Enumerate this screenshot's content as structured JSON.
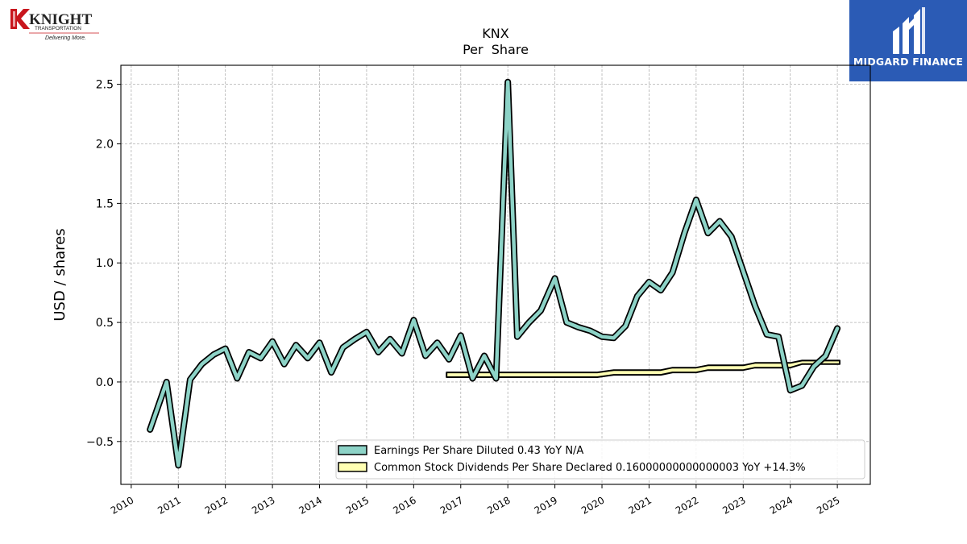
{
  "branding": {
    "company_logo_text": "KNIGHT",
    "company_logo_sub": "TRANSPORTATION",
    "company_tagline": "Delivering More.",
    "brand_name": "MIDGARD FINANCE",
    "brand_color": "#2b5bb5"
  },
  "chart_data": {
    "type": "line",
    "title": "KNX",
    "subtitle": "Per  Share",
    "ylabel": "USD / shares",
    "xlabel": "",
    "xlim": [
      2009.78,
      2025.7
    ],
    "ylim": [
      -0.86,
      2.66
    ],
    "yticks": [
      -0.5,
      0.0,
      0.5,
      1.0,
      1.5,
      2.0,
      2.5
    ],
    "ytick_labels": [
      "−0.5",
      "0.0",
      "0.5",
      "1.0",
      "1.5",
      "2.0",
      "2.5"
    ],
    "xticks": [
      2010,
      2011,
      2012,
      2013,
      2014,
      2015,
      2016,
      2017,
      2018,
      2019,
      2020,
      2021,
      2022,
      2023,
      2024,
      2025
    ],
    "xtick_labels": [
      "2010",
      "2011",
      "2012",
      "2013",
      "2014",
      "2015",
      "2016",
      "2017",
      "2018",
      "2019",
      "2020",
      "2021",
      "2022",
      "2023",
      "2024",
      "2025"
    ],
    "grid": true,
    "legend_position": "lower-right",
    "series": [
      {
        "name": "Earnings Per Share Diluted  0.43 YoY N/A",
        "color": "#8dd3c7",
        "x": [
          2010.4,
          2010.75,
          2011.0,
          2011.25,
          2011.5,
          2011.75,
          2012.0,
          2012.25,
          2012.5,
          2012.75,
          2013.0,
          2013.25,
          2013.5,
          2013.75,
          2014.0,
          2014.25,
          2014.5,
          2014.75,
          2015.0,
          2015.25,
          2015.5,
          2015.75,
          2016.0,
          2016.25,
          2016.5,
          2016.75,
          2017.0,
          2017.25,
          2017.5,
          2017.75,
          2018.0,
          2018.2,
          2018.45,
          2018.7,
          2019.0,
          2019.25,
          2019.5,
          2019.75,
          2020.0,
          2020.25,
          2020.5,
          2020.75,
          2021.0,
          2021.25,
          2021.5,
          2021.75,
          2022.0,
          2022.25,
          2022.5,
          2022.75,
          2023.0,
          2023.25,
          2023.5,
          2023.75,
          2024.0,
          2024.25,
          2024.5,
          2024.75,
          2025.0
        ],
        "y": [
          -0.4,
          0.0,
          -0.7,
          0.02,
          0.15,
          0.23,
          0.28,
          0.03,
          0.25,
          0.2,
          0.34,
          0.15,
          0.31,
          0.2,
          0.33,
          0.08,
          0.29,
          0.36,
          0.42,
          0.25,
          0.36,
          0.24,
          0.52,
          0.22,
          0.33,
          0.19,
          0.39,
          0.03,
          0.22,
          0.03,
          2.52,
          0.38,
          0.5,
          0.6,
          0.87,
          0.5,
          0.46,
          0.43,
          0.38,
          0.37,
          0.47,
          0.72,
          0.84,
          0.77,
          0.92,
          1.25,
          1.53,
          1.25,
          1.35,
          1.22,
          0.93,
          0.64,
          0.4,
          0.38,
          -0.07,
          -0.03,
          0.13,
          0.22,
          0.45
        ]
      },
      {
        "name": "Common Stock Dividends Per Share Declared  0.16000000000000003 YoY +14.3%",
        "color": "#ffffb3",
        "band_x": [
          2016.7,
          2019.9,
          2020.25,
          2021.25,
          2021.5,
          2022.0,
          2022.25,
          2023.0,
          2023.25,
          2024.0,
          2024.25,
          2025.05
        ],
        "band_upper": [
          0.08,
          0.08,
          0.1,
          0.1,
          0.12,
          0.12,
          0.14,
          0.14,
          0.16,
          0.16,
          0.18,
          0.18
        ],
        "band_lower": [
          0.04,
          0.04,
          0.06,
          0.06,
          0.08,
          0.08,
          0.1,
          0.1,
          0.12,
          0.12,
          0.15,
          0.15
        ]
      }
    ]
  }
}
